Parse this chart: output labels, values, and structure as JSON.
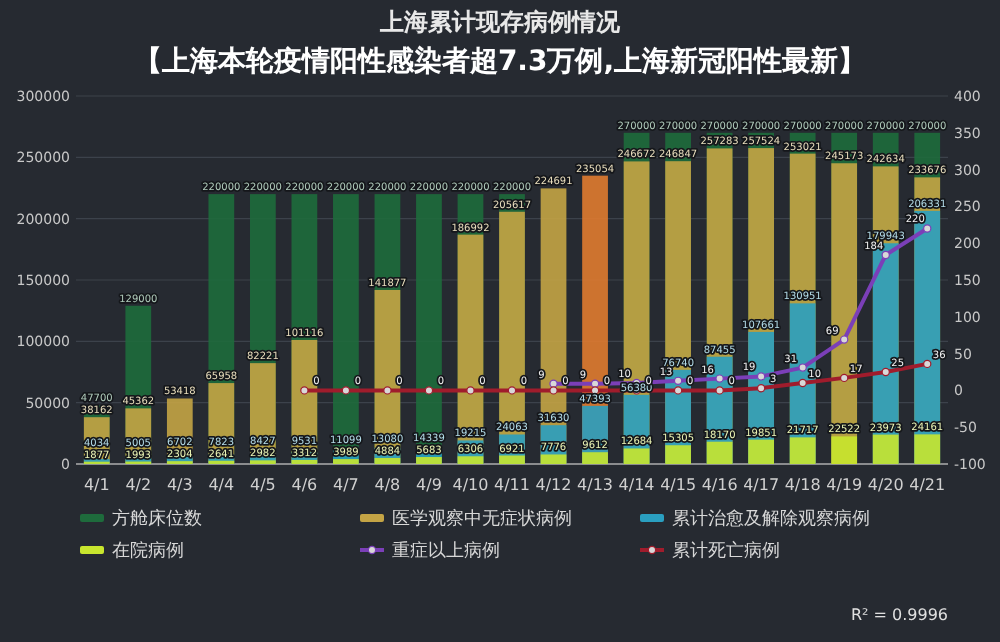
{
  "chart_data": {
    "type": "bar",
    "title": "上海累计现存病例情况",
    "subtitle": "【上海本轮疫情阳性感染者超7.3万例,上海新冠阳性最新】",
    "categories": [
      "4/1",
      "4/2",
      "4/3",
      "4/4",
      "4/5",
      "4/6",
      "4/7",
      "4/8",
      "4/9",
      "4/10",
      "4/11",
      "4/12",
      "4/13",
      "4/14",
      "4/15",
      "4/16",
      "4/17",
      "4/18",
      "4/19",
      "4/20",
      "4/21"
    ],
    "series": [
      {
        "name": "方舱床位数",
        "color": "#1e6b3c",
        "values": [
          47700,
          129000,
          null,
          220000,
          220000,
          220000,
          220000,
          220000,
          220000,
          220000,
          220000,
          null,
          null,
          270000,
          270000,
          270000,
          270000,
          270000,
          270000,
          270000,
          270000
        ]
      },
      {
        "name": "医学观察中无症状病例",
        "color": "#c4a445",
        "colors": [
          "#c4a445",
          "#c4a445",
          "#c4a445",
          "#c4a445",
          "#c4a445",
          "#c4a445",
          "#c4a445",
          "#c4a445",
          "#c4a445",
          "#c4a445",
          "#c4a445",
          "#c4a445",
          "#e07b30",
          "#c4a445",
          "#c4a445",
          "#c4a445",
          "#c4a445",
          "#c4a445",
          "#c4a445",
          "#c4a445",
          "#c4a445"
        ],
        "values": [
          38162,
          45362,
          53418,
          65958,
          82221,
          101116,
          null,
          141877,
          null,
          186992,
          205617,
          224691,
          235054,
          246672,
          246847,
          257283,
          257524,
          253021,
          245173,
          242634,
          233676
        ]
      },
      {
        "name": "累计治愈及解除观察病例",
        "color": "#2a9fc0",
        "values": [
          4034,
          5005,
          6702,
          7823,
          8427,
          9531,
          11099,
          13080,
          14339,
          19215,
          24063,
          31630,
          47393,
          56380,
          76740,
          87455,
          107661,
          130951,
          null,
          179943,
          206331
        ]
      },
      {
        "name": "在院病例",
        "color": "#c8e62e",
        "values": [
          1877,
          1993,
          2304,
          2641,
          2982,
          3312,
          3989,
          4884,
          5683,
          6306,
          6921,
          7776,
          9612,
          12684,
          15305,
          18170,
          19851,
          21717,
          22522,
          23973,
          24161
        ]
      },
      {
        "name": "重症以上病例",
        "type": "line",
        "axis": "y2",
        "color": "#7b3fb8",
        "values": [
          null,
          null,
          null,
          null,
          null,
          null,
          null,
          null,
          null,
          null,
          null,
          9,
          9,
          10,
          13,
          16,
          19,
          31,
          69,
          184,
          220
        ]
      },
      {
        "name": "累计死亡病例",
        "type": "line",
        "axis": "y2",
        "color": "#a01c2c",
        "values": [
          null,
          null,
          null,
          null,
          null,
          0,
          0,
          0,
          0,
          0,
          0,
          0,
          0,
          0,
          0,
          0,
          3,
          10,
          17,
          25,
          36
        ]
      }
    ],
    "ylim": [
      0,
      300000
    ],
    "yticks": [
      0,
      50000,
      100000,
      150000,
      200000,
      250000,
      300000
    ],
    "y2lim": [
      -100,
      400
    ],
    "y2ticks": [
      -100,
      -50,
      0,
      50,
      100,
      150,
      200,
      250,
      300,
      350,
      400
    ],
    "annotations": [
      "R² = 0.9996"
    ],
    "data_labels": true,
    "marker": "circle",
    "legend": "bottom",
    "grid": "y"
  }
}
